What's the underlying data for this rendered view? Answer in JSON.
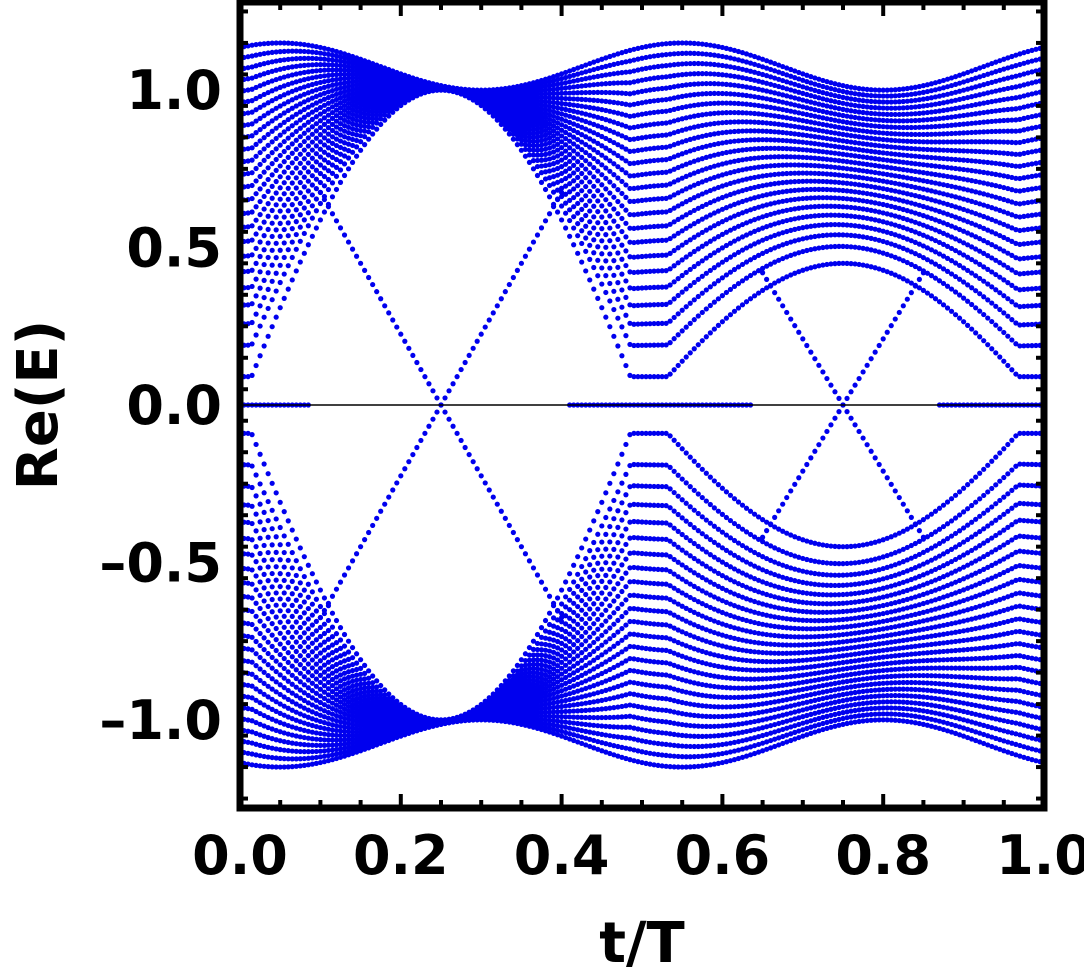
{
  "chart_data": {
    "type": "scatter",
    "title": "",
    "xlabel": "t/T",
    "ylabel": "Re(E)",
    "xlim": [
      0.0,
      1.0
    ],
    "ylim": [
      -1.28,
      1.28
    ],
    "xticks": [
      {
        "value": 0.0,
        "label": "0.0"
      },
      {
        "value": 0.2,
        "label": "0.2"
      },
      {
        "value": 0.4,
        "label": "0.4"
      },
      {
        "value": 0.6,
        "label": "0.6"
      },
      {
        "value": 0.8,
        "label": "0.8"
      },
      {
        "value": 1.0,
        "label": "1.0"
      }
    ],
    "yticks": [
      {
        "value": 1.0,
        "label": "1.0"
      },
      {
        "value": 0.5,
        "label": "0.5"
      },
      {
        "value": 0.0,
        "label": "0.0"
      },
      {
        "value": -0.5,
        "label": "–0.5"
      },
      {
        "value": -1.0,
        "label": "–1.0"
      }
    ],
    "minor_tick_step": 0.05,
    "zero_line": true,
    "grid": false,
    "series": [
      {
        "color": "#0000ee",
        "sampling": {
          "t_start": 0.0,
          "t_end": 1.0,
          "t_step": 0.005,
          "bands_per_sign": 24
        },
        "band_model": "E_k(t) = ±sqrt(d(t)^2 + (1 - d(t)^2)·s_k^2 + 0.35·w(t)^2·s_k^2·(1 - s_k^2)), s_k = k/(N+1), d(t) = 0.3·sin(2π(t + 0.25)), w(t) = 1 for t ≤ 0.5 and 0.5 for t > 0.5",
        "edge_states": [
          {
            "t_range": [
              0.0,
              0.5
            ],
            "model": "±|1.2·sin(2π·t)·cos(2π·t)... approx ±4(t-0.25) crossing",
            "crossing_t": 0.25
          },
          {
            "t_range": [
              0.65,
              0.85
            ],
            "model": "±0.4·|t - 0.75|/0.1 approx",
            "crossing_t": 0.75
          }
        ],
        "key_values": [
          {
            "t": 0.0,
            "E_max": 1.14,
            "E_min_positive": 0.0
          },
          {
            "t": 0.05,
            "E_max": 1.15
          },
          {
            "t": 0.25,
            "E_max": 1.0,
            "gap_edge": 1.0
          },
          {
            "t": 0.45,
            "E_max": 1.15
          },
          {
            "t": 0.5,
            "E_min_positive": 0.09
          },
          {
            "t": 0.75,
            "E_max": 1.0,
            "E_min_positive": 0.45
          },
          {
            "t": 0.95,
            "E_max": 1.15
          },
          {
            "t": 1.0,
            "E_max": 1.14
          }
        ]
      }
    ]
  }
}
